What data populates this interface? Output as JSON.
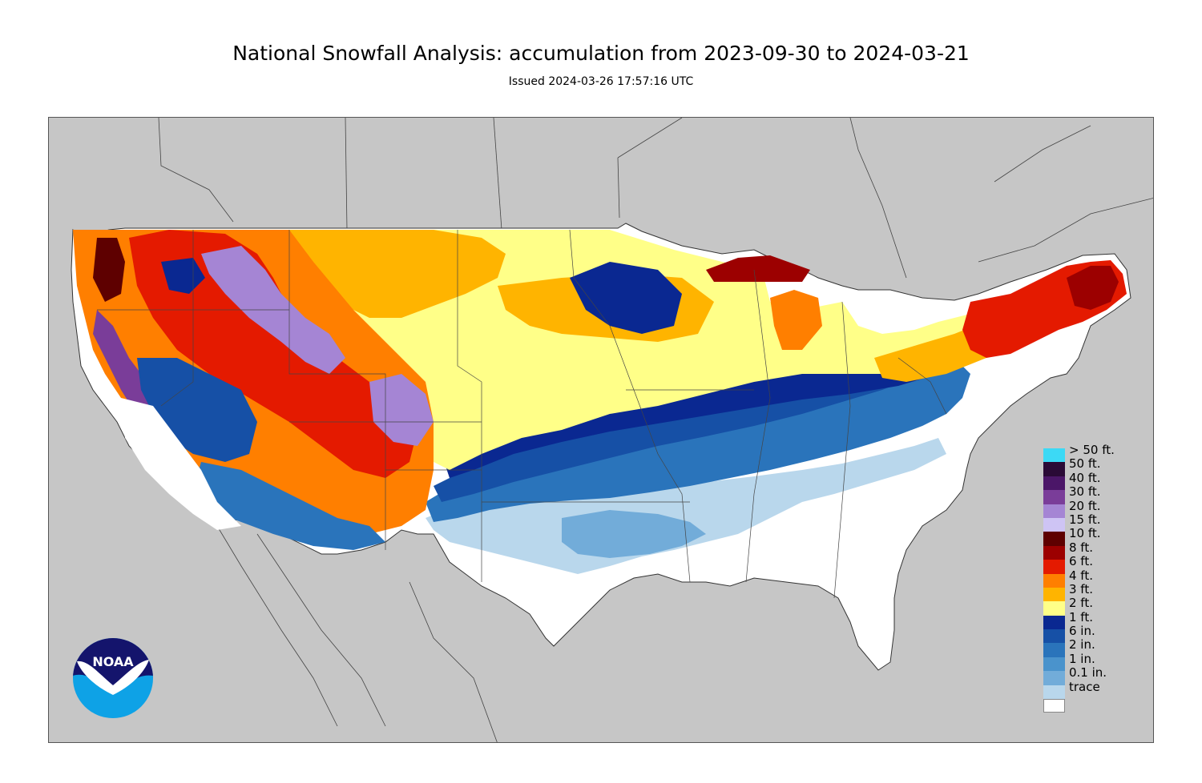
{
  "title": "National Snowfall Analysis: accumulation from 2023-09-30 to 2024-03-21",
  "issued": "Issued 2024-03-26 17:57:16 UTC",
  "logo_text": "NOAA",
  "colors": {
    "background_land": "#c6c6c6",
    "outline": "#333333"
  },
  "legend": [
    {
      "label": "> 50 ft.",
      "color": "#3cd9f5"
    },
    {
      "label": "50 ft.",
      "color": "#2a0a36"
    },
    {
      "label": "40 ft.",
      "color": "#4b1668"
    },
    {
      "label": "30 ft.",
      "color": "#7a3d99"
    },
    {
      "label": "20 ft.",
      "color": "#a585d4"
    },
    {
      "label": "15 ft.",
      "color": "#cec4f4"
    },
    {
      "label": "10 ft.",
      "color": "#5e0000"
    },
    {
      "label": "8 ft.",
      "color": "#9c0000"
    },
    {
      "label": "6 ft.",
      "color": "#e41a00"
    },
    {
      "label": "4 ft.",
      "color": "#ff7f00"
    },
    {
      "label": "3 ft.",
      "color": "#ffb400"
    },
    {
      "label": "2 ft.",
      "color": "#ffff88"
    },
    {
      "label": "1 ft.",
      "color": "#0a2891"
    },
    {
      "label": "6 in.",
      "color": "#1650a6"
    },
    {
      "label": "2 in.",
      "color": "#2a74bb"
    },
    {
      "label": "1 in.",
      "color": "#4a93cc"
    },
    {
      "label": "0.1 in.",
      "color": "#72acd9"
    },
    {
      "label": "trace",
      "color": "#b9d7ec"
    },
    {
      "label": "",
      "color": "#ffffff"
    }
  ]
}
